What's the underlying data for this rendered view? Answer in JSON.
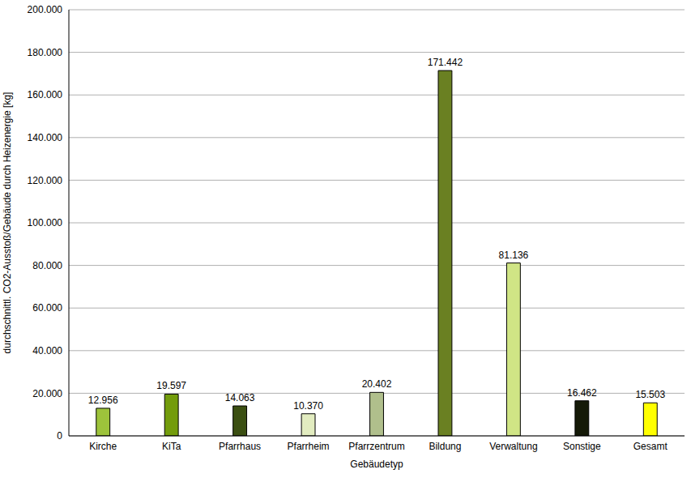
{
  "chart_data": {
    "type": "bar",
    "x_label": "Gebäudetyp",
    "y_label": "durchschnittl. CO2-Ausstoß/Gebäude durch Heizenergie [kg]",
    "categories": [
      "Kirche",
      "KiTa",
      "Pfarrhaus",
      "Pfarrheim",
      "Pfarrzentrum",
      "Bildung",
      "Verwaltung",
      "Sonstige",
      "Gesamt"
    ],
    "values": [
      12956,
      19597,
      14063,
      10370,
      20402,
      171442,
      81136,
      16462,
      15503
    ],
    "value_labels": [
      "12.956",
      "19.597",
      "14.063",
      "10.370",
      "20.402",
      "171.442",
      "81.136",
      "16.462",
      "15.503"
    ],
    "colors": [
      "#9dc33b",
      "#739c0c",
      "#3b4f12",
      "#e2ecc0",
      "#b0bf8c",
      "#6a8022",
      "#d0e585",
      "#151a08",
      "#ffff00"
    ],
    "ylim": [
      0,
      200000
    ],
    "yticks": [
      0,
      {
        "value": 20000,
        "label": "20.000"
      },
      {
        "value": 40000,
        "label": "40.000"
      },
      {
        "value": 60000,
        "label": "60.000"
      },
      {
        "value": 80000,
        "label": "80.000"
      },
      {
        "value": 100000,
        "label": "100.000"
      },
      {
        "value": 120000,
        "label": "120.000"
      },
      {
        "value": 140000,
        "label": "140.000"
      },
      {
        "value": 160000,
        "label": "160.000"
      },
      {
        "value": 180000,
        "label": "180.000"
      },
      {
        "value": 200000,
        "label": "200.000"
      }
    ],
    "grid": true,
    "data_labels": true
  }
}
